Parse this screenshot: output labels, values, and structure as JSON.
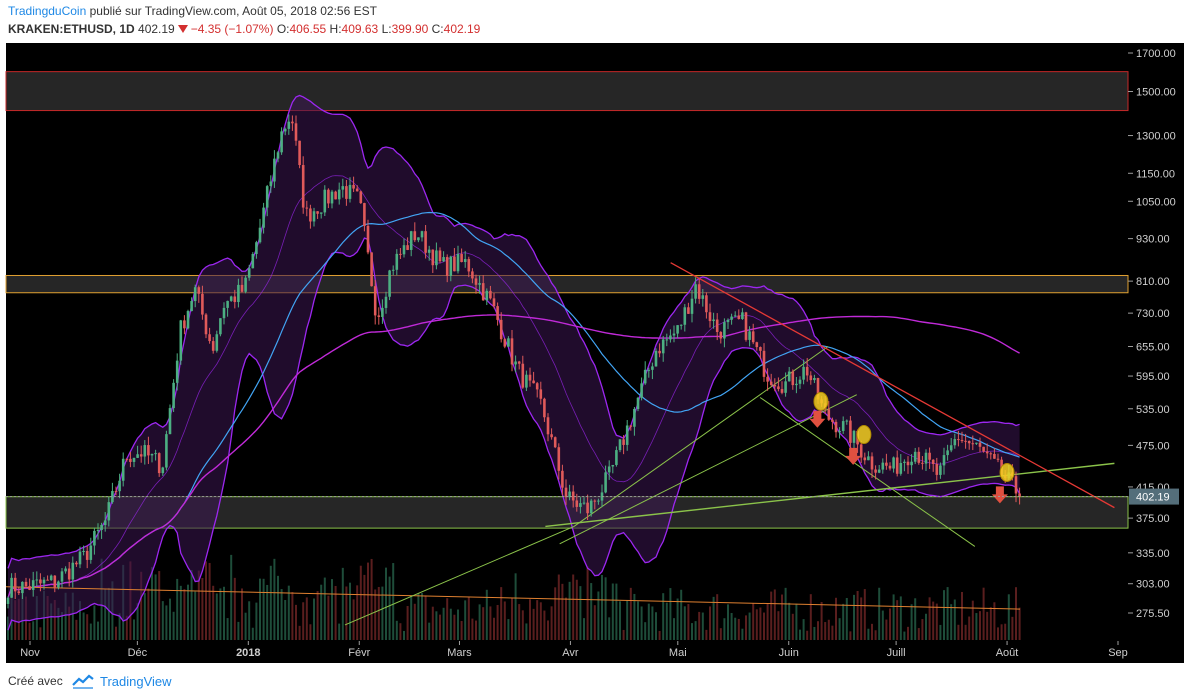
{
  "header": {
    "author": "TradingduCoin",
    "published_text": "publié sur TradingView.com, Août 05, 2018 02:56 EST",
    "symbol": "KRAKEN:ETHUSD, 1D",
    "price": "402.19",
    "change": "−4.35 (−1.07%)",
    "o_label": "O:",
    "o_value": "406.55",
    "h_label": "H:",
    "h_value": "409.63",
    "l_label": "L:",
    "l_value": "399.90",
    "c_label": "C:",
    "c_value": "402.19"
  },
  "footer": {
    "created_with": "Créé avec",
    "brand": "TradingView"
  },
  "colors": {
    "background": "#000000",
    "up": "#4caf82",
    "down": "#e05a5a",
    "bollinger": "#9c27f0",
    "ma_fast": "#42a5f5",
    "ma_slow": "#c02ad8",
    "trend_green": "#8bc34a",
    "trend_red": "#e53935",
    "zone_orange": "#e0a030",
    "zone_red": "#c62828",
    "price_label_bg": "#546e7a",
    "volume_ma": "#e08030"
  },
  "chart_data": {
    "type": "candlestick",
    "scale": "log",
    "price_axis_ticks": [
      "1700.00",
      "1500.00",
      "1300.00",
      "1150.00",
      "1050.00",
      "930.00",
      "810.00",
      "730.00",
      "655.00",
      "595.00",
      "535.00",
      "475.00",
      "415.00",
      "375.00",
      "335.00",
      "303.00",
      "275.50"
    ],
    "time_axis_labels": [
      "Nov",
      "Déc",
      "2018",
      "Févr",
      "Mars",
      "Avr",
      "Mai",
      "Juin",
      "Juill",
      "Août",
      "Sep"
    ],
    "last_price_label": "402.19",
    "horizontal_zones": [
      {
        "kind": "resistance",
        "color": "red",
        "low": 1410,
        "high": 1600
      },
      {
        "kind": "resistance",
        "color": "orange",
        "low": 780,
        "high": 825
      },
      {
        "kind": "support",
        "color": "green",
        "low": 363,
        "high": 402
      }
    ],
    "series": [
      {
        "type": "candles",
        "values": [
          {
            "d": "2017-10-31",
            "c": 300
          },
          {
            "d": "2017-11-08",
            "c": 305
          },
          {
            "d": "2017-11-16",
            "c": 330
          },
          {
            "d": "2017-11-22",
            "c": 370
          },
          {
            "d": "2017-11-28",
            "c": 460
          },
          {
            "d": "2017-12-02",
            "c": 465
          },
          {
            "d": "2017-12-08",
            "c": 445
          },
          {
            "d": "2017-12-13",
            "c": 690
          },
          {
            "d": "2017-12-17",
            "c": 790
          },
          {
            "d": "2017-12-22",
            "c": 650
          },
          {
            "d": "2017-12-25",
            "c": 750
          },
          {
            "d": "2017-12-31",
            "c": 790
          },
          {
            "d": "2018-01-04",
            "c": 950
          },
          {
            "d": "2018-01-10",
            "c": 1300
          },
          {
            "d": "2018-01-13",
            "c": 1400
          },
          {
            "d": "2018-01-17",
            "c": 1000
          },
          {
            "d": "2018-01-22",
            "c": 1050
          },
          {
            "d": "2018-01-27",
            "c": 1100
          },
          {
            "d": "2018-02-01",
            "c": 1050
          },
          {
            "d": "2018-02-06",
            "c": 720
          },
          {
            "d": "2018-02-10",
            "c": 850
          },
          {
            "d": "2018-02-17",
            "c": 950
          },
          {
            "d": "2018-02-24",
            "c": 850
          },
          {
            "d": "2018-03-03",
            "c": 860
          },
          {
            "d": "2018-03-10",
            "c": 750
          },
          {
            "d": "2018-03-17",
            "c": 610
          },
          {
            "d": "2018-03-24",
            "c": 540
          },
          {
            "d": "2018-03-31",
            "c": 400
          },
          {
            "d": "2018-04-06",
            "c": 385
          },
          {
            "d": "2018-04-12",
            "c": 430
          },
          {
            "d": "2018-04-18",
            "c": 520
          },
          {
            "d": "2018-04-25",
            "c": 650
          },
          {
            "d": "2018-05-01",
            "c": 690
          },
          {
            "d": "2018-05-06",
            "c": 800
          },
          {
            "d": "2018-05-12",
            "c": 690
          },
          {
            "d": "2018-05-19",
            "c": 710
          },
          {
            "d": "2018-05-26",
            "c": 600
          },
          {
            "d": "2018-05-31",
            "c": 580
          },
          {
            "d": "2018-06-06",
            "c": 610
          },
          {
            "d": "2018-06-11",
            "c": 525
          },
          {
            "d": "2018-06-17",
            "c": 500
          },
          {
            "d": "2018-06-24",
            "c": 450
          },
          {
            "d": "2018-06-30",
            "c": 440
          },
          {
            "d": "2018-07-06",
            "c": 470
          },
          {
            "d": "2018-07-13",
            "c": 430
          },
          {
            "d": "2018-07-18",
            "c": 490
          },
          {
            "d": "2018-07-24",
            "c": 470
          },
          {
            "d": "2018-07-31",
            "c": 430
          },
          {
            "d": "2018-08-05",
            "c": 402.19
          }
        ]
      }
    ],
    "annotations": [
      "yellow circles on price",
      "red down arrows",
      "green and red trend lines"
    ]
  }
}
